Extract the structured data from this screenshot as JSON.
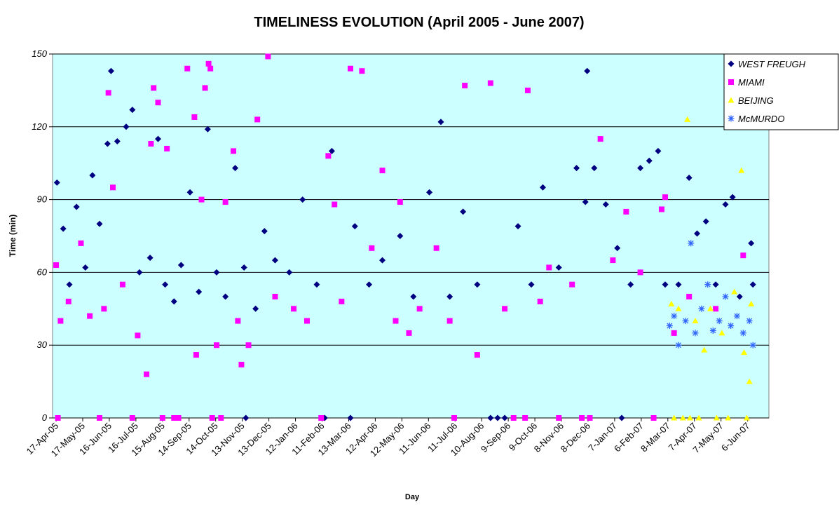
{
  "chart_data": {
    "type": "scatter",
    "title": "TIMELINESS EVOLUTION (April 2005 - June 2007)",
    "x_label": "Day",
    "y_label": "Time (min)",
    "xlim": [
      "2005-04-13",
      "2007-06-30"
    ],
    "ylim": [
      0,
      150
    ],
    "yticks": [
      0,
      30,
      60,
      90,
      120,
      150
    ],
    "xticks": [
      {
        "value": "2005-04-17",
        "label": "17-Apr-05"
      },
      {
        "value": "2005-05-17",
        "label": "17-May-05"
      },
      {
        "value": "2005-06-16",
        "label": "16-Jun-05"
      },
      {
        "value": "2005-07-16",
        "label": "16-Jul-05"
      },
      {
        "value": "2005-08-15",
        "label": "15-Aug-05"
      },
      {
        "value": "2005-09-14",
        "label": "14-Sep-05"
      },
      {
        "value": "2005-10-14",
        "label": "14-Oct-05"
      },
      {
        "value": "2005-11-13",
        "label": "13-Nov-05"
      },
      {
        "value": "2005-12-13",
        "label": "13-Dec-05"
      },
      {
        "value": "2006-01-12",
        "label": "12-Jan-06"
      },
      {
        "value": "2006-02-11",
        "label": "11-Feb-06"
      },
      {
        "value": "2006-03-13",
        "label": "13-Mar-06"
      },
      {
        "value": "2006-04-12",
        "label": "12-Apr-06"
      },
      {
        "value": "2006-05-12",
        "label": "12-May-06"
      },
      {
        "value": "2006-06-11",
        "label": "11-Jun-06"
      },
      {
        "value": "2006-07-11",
        "label": "11-Jul-06"
      },
      {
        "value": "2006-08-10",
        "label": "10-Aug-06"
      },
      {
        "value": "2006-09-09",
        "label": "9-Sep-06"
      },
      {
        "value": "2006-10-09",
        "label": "9-Oct-06"
      },
      {
        "value": "2006-11-08",
        "label": "8-Nov-06"
      },
      {
        "value": "2006-12-08",
        "label": "8-Dec-06"
      },
      {
        "value": "2007-01-07",
        "label": "7-Jan-07"
      },
      {
        "value": "2007-02-06",
        "label": "6-Feb-07"
      },
      {
        "value": "2007-03-08",
        "label": "8-Mar-07"
      },
      {
        "value": "2007-04-07",
        "label": "7-Apr-07"
      },
      {
        "value": "2007-05-07",
        "label": "7-May-07"
      },
      {
        "value": "2007-06-06",
        "label": "6-Jun-07"
      }
    ],
    "grid": true,
    "background": "#ccffff",
    "legend": "top-right",
    "series": [
      {
        "name": "WEST FREUGH",
        "color": "#000080",
        "marker": "diamond",
        "x": [
          "2005-04-18",
          "2005-04-25",
          "2005-05-02",
          "2005-05-10",
          "2005-05-20",
          "2005-05-28",
          "2005-06-05",
          "2005-06-14",
          "2005-06-18",
          "2005-06-25",
          "2005-07-05",
          "2005-07-12",
          "2005-07-20",
          "2005-08-01",
          "2005-08-10",
          "2005-08-18",
          "2005-08-28",
          "2005-09-05",
          "2005-09-15",
          "2005-09-25",
          "2005-10-05",
          "2005-10-15",
          "2005-10-25",
          "2005-11-05",
          "2005-11-15",
          "2005-11-17",
          "2005-11-28",
          "2005-12-08",
          "2005-12-20",
          "2006-01-05",
          "2006-01-20",
          "2006-02-05",
          "2006-02-14",
          "2006-02-22",
          "2006-03-15",
          "2006-03-20",
          "2006-04-05",
          "2006-04-20",
          "2006-05-10",
          "2006-05-25",
          "2006-06-12",
          "2006-06-25",
          "2006-07-05",
          "2006-07-20",
          "2006-08-05",
          "2006-08-20",
          "2006-08-28",
          "2006-09-05",
          "2006-09-20",
          "2006-10-05",
          "2006-10-18",
          "2006-11-05",
          "2006-11-25",
          "2006-12-05",
          "2006-12-07",
          "2006-12-15",
          "2006-12-28",
          "2007-01-10",
          "2007-01-15",
          "2007-01-25",
          "2007-02-05",
          "2007-02-15",
          "2007-02-25",
          "2007-03-05",
          "2007-03-20",
          "2007-04-01",
          "2007-04-10",
          "2007-04-20",
          "2007-05-01",
          "2007-05-12",
          "2007-05-20",
          "2007-05-28",
          "2007-06-10",
          "2007-06-12"
        ],
        "values": [
          97,
          78,
          55,
          87,
          62,
          100,
          80,
          113,
          143,
          114,
          120,
          127,
          60,
          66,
          115,
          55,
          48,
          63,
          93,
          52,
          119,
          60,
          50,
          103,
          62,
          0,
          45,
          77,
          65,
          60,
          90,
          55,
          0,
          110,
          0,
          79,
          55,
          65,
          75,
          50,
          93,
          122,
          50,
          85,
          55,
          0,
          0,
          0,
          79,
          55,
          95,
          62,
          103,
          89,
          143,
          103,
          88,
          70,
          0,
          55,
          103,
          106,
          110,
          55,
          55,
          99,
          76,
          81,
          55,
          88,
          91,
          50,
          72,
          55
        ]
      },
      {
        "name": "MIAMI",
        "color": "#ff00ff",
        "marker": "square",
        "x": [
          "2005-04-17",
          "2005-04-19",
          "2005-04-22",
          "2005-05-01",
          "2005-05-15",
          "2005-05-25",
          "2005-06-05",
          "2005-06-10",
          "2005-06-15",
          "2005-06-20",
          "2005-07-01",
          "2005-07-12",
          "2005-07-18",
          "2005-07-28",
          "2005-08-02",
          "2005-08-05",
          "2005-08-10",
          "2005-08-15",
          "2005-08-20",
          "2005-08-28",
          "2005-09-02",
          "2005-09-12",
          "2005-09-20",
          "2005-09-22",
          "2005-09-28",
          "2005-10-02",
          "2005-10-06",
          "2005-10-08",
          "2005-10-10",
          "2005-10-15",
          "2005-10-20",
          "2005-10-25",
          "2005-11-03",
          "2005-11-08",
          "2005-11-12",
          "2005-11-20",
          "2005-11-30",
          "2005-12-12",
          "2005-12-20",
          "2006-01-10",
          "2006-01-25",
          "2006-02-10",
          "2006-02-18",
          "2006-02-25",
          "2006-03-05",
          "2006-03-15",
          "2006-03-28",
          "2006-04-08",
          "2006-04-20",
          "2006-05-05",
          "2006-05-10",
          "2006-05-20",
          "2006-06-01",
          "2006-06-20",
          "2006-07-05",
          "2006-07-10",
          "2006-07-22",
          "2006-08-05",
          "2006-08-20",
          "2006-09-05",
          "2006-09-15",
          "2006-09-28",
          "2006-10-01",
          "2006-10-15",
          "2006-10-25",
          "2006-11-05",
          "2006-11-20",
          "2006-12-01",
          "2006-12-10",
          "2006-12-22",
          "2007-01-05",
          "2007-01-20",
          "2007-02-05",
          "2007-02-20",
          "2007-03-01",
          "2007-03-05",
          "2007-03-15",
          "2007-04-01",
          "2007-05-01",
          "2007-06-01"
        ],
        "values": [
          63,
          0,
          40,
          48,
          72,
          42,
          0,
          45,
          134,
          95,
          55,
          0,
          34,
          18,
          113,
          136,
          130,
          0,
          111,
          0,
          0,
          144,
          124,
          26,
          90,
          136,
          146,
          144,
          0,
          30,
          0,
          89,
          110,
          40,
          22,
          30,
          123,
          149,
          50,
          45,
          40,
          0,
          108,
          88,
          48,
          144,
          143,
          70,
          102,
          40,
          89,
          35,
          45,
          70,
          40,
          0,
          137,
          26,
          138,
          45,
          0,
          0,
          135,
          48,
          62,
          0,
          55,
          0,
          0,
          115,
          65,
          85,
          60,
          0,
          86,
          91,
          35,
          50,
          45,
          67
        ]
      },
      {
        "name": "BEIJING",
        "color": "#ffff00",
        "marker": "triangle",
        "x": [
          "2007-03-12",
          "2007-03-15",
          "2007-03-20",
          "2007-03-25",
          "2007-03-30",
          "2007-04-02",
          "2007-04-08",
          "2007-04-12",
          "2007-04-18",
          "2007-04-25",
          "2007-05-02",
          "2007-05-08",
          "2007-05-15",
          "2007-05-22",
          "2007-05-30",
          "2007-06-02",
          "2007-06-05",
          "2007-06-08",
          "2007-06-10"
        ],
        "values": [
          47,
          0,
          45,
          0,
          123,
          0,
          40,
          0,
          28,
          45,
          0,
          35,
          0,
          52,
          102,
          27,
          0,
          15,
          47
        ]
      },
      {
        "name": "McMURDO",
        "color": "#3366ff",
        "marker": "asterisk",
        "x": [
          "2007-03-10",
          "2007-03-15",
          "2007-03-20",
          "2007-03-28",
          "2007-04-03",
          "2007-04-08",
          "2007-04-15",
          "2007-04-22",
          "2007-04-28",
          "2007-05-05",
          "2007-05-12",
          "2007-05-18",
          "2007-05-25",
          "2007-06-01",
          "2007-06-08",
          "2007-06-12"
        ],
        "values": [
          38,
          42,
          30,
          40,
          72,
          35,
          45,
          55,
          36,
          40,
          50,
          38,
          42,
          35,
          40,
          30
        ]
      }
    ]
  }
}
